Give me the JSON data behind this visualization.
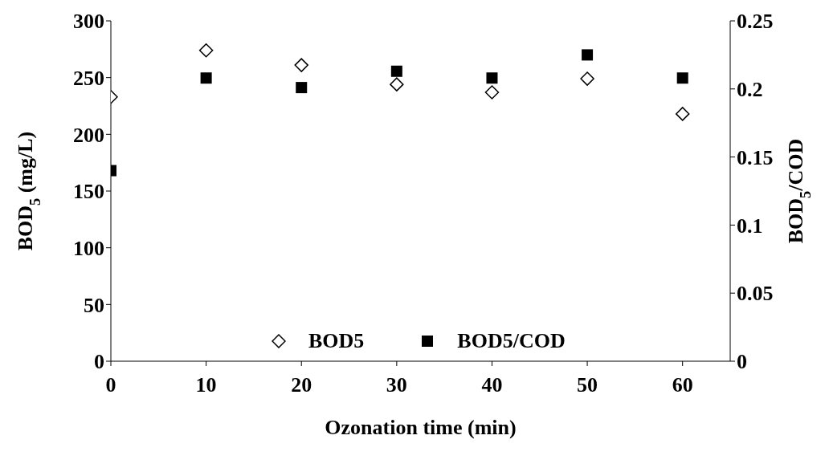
{
  "chart_data": {
    "type": "scatter",
    "xlabel": "Ozonation time (min)",
    "ylabel": "BOD$_{5}$ (mg/L)",
    "y2label": "BOD$_{5}$/COD",
    "x": [
      0,
      10,
      20,
      30,
      40,
      50,
      60
    ],
    "series": [
      {
        "name": "BOD5",
        "color": "#000000",
        "marker": "diamond",
        "values": [
          233,
          274,
          261,
          244,
          237,
          249,
          218
        ]
      },
      {
        "name": "BOD5/COD",
        "color": "#000000",
        "marker": "square",
        "axis": "y2",
        "values": [
          0.14,
          0.208,
          0.201,
          0.213,
          0.208,
          0.225,
          0.208
        ]
      }
    ],
    "xlim": [
      0,
      65
    ],
    "xticks": [
      0,
      10,
      20,
      30,
      40,
      50,
      60
    ],
    "ylim": [
      0,
      300
    ],
    "yticks": [
      0,
      50,
      100,
      150,
      200,
      250,
      300
    ],
    "y2lim": [
      0,
      0.25
    ],
    "y2ticks": [
      0,
      0.05,
      0.1,
      0.15,
      0.2,
      0.25
    ],
    "grid": false,
    "legend": "bottom"
  }
}
